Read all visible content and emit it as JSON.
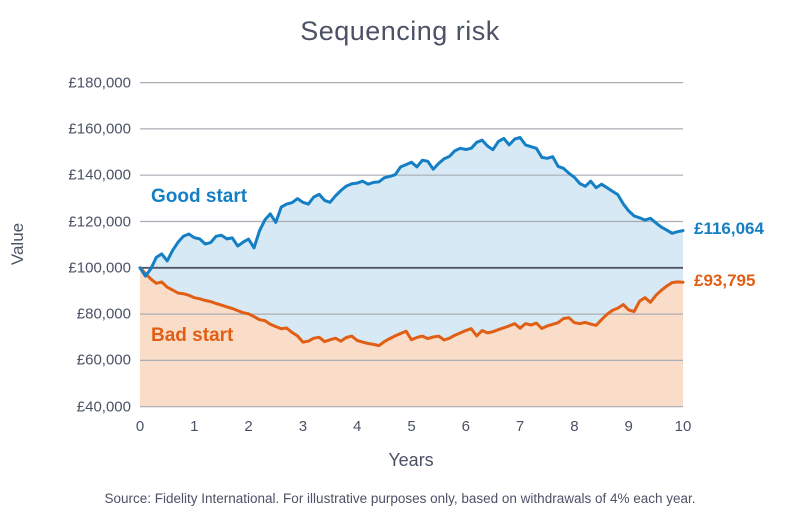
{
  "title": "Sequencing risk",
  "y_axis": {
    "label": "Value"
  },
  "x_axis": {
    "label": "Years"
  },
  "annotations": {
    "good_series_label": "Good start",
    "bad_series_label": "Bad start",
    "good_end_value": "£116,064",
    "bad_end_value": "£93,795"
  },
  "source": "Source: Fidelity International. For illustrative purposes only, based on withdrawals of 4% each year.",
  "colors": {
    "good_line": "#157fc5",
    "good_fill": "#d6e9f5",
    "bad_line": "#e05f15",
    "bad_fill": "#f9ddc9",
    "text": "#4b5266",
    "gridline": "#a9adb4",
    "gridline_emphasis": "#4e5564"
  },
  "chart_data": {
    "type": "area",
    "title": "Sequencing risk",
    "xlabel": "Years",
    "ylabel": "Value",
    "xlim": [
      0,
      10
    ],
    "ylim": [
      40000,
      180000
    ],
    "x_ticks": [
      0,
      1,
      2,
      3,
      4,
      5,
      6,
      7,
      8,
      9,
      10
    ],
    "y_ticks": [
      40000,
      60000,
      80000,
      100000,
      120000,
      140000,
      160000,
      180000
    ],
    "y_tick_labels": [
      "£40,000",
      "£60,000",
      "£80,000",
      "£100,000",
      "£120,000",
      "£140,000",
      "£160,000",
      "£180,000"
    ],
    "grid": true,
    "emphasized_gridline_value": 100000,
    "legend_position": "inline-labels",
    "x": [
      0,
      0.1,
      0.2,
      0.3,
      0.4,
      0.5,
      0.6,
      0.7,
      0.8,
      0.9,
      1,
      1.1,
      1.2,
      1.3,
      1.4,
      1.5,
      1.6,
      1.7,
      1.8,
      1.9,
      2,
      2.1,
      2.2,
      2.3,
      2.4,
      2.5,
      2.6,
      2.7,
      2.8,
      2.9,
      3,
      3.1,
      3.2,
      3.3,
      3.4,
      3.5,
      3.6,
      3.7,
      3.8,
      3.9,
      4,
      4.1,
      4.2,
      4.3,
      4.4,
      4.5,
      4.6,
      4.7,
      4.8,
      4.9,
      5,
      5.1,
      5.2,
      5.3,
      5.4,
      5.5,
      5.6,
      5.7,
      5.8,
      5.9,
      6,
      6.1,
      6.2,
      6.3,
      6.4,
      6.5,
      6.6,
      6.7,
      6.8,
      6.9,
      7,
      7.1,
      7.2,
      7.3,
      7.4,
      7.5,
      7.6,
      7.7,
      7.8,
      7.9,
      8,
      8.1,
      8.2,
      8.3,
      8.4,
      8.5,
      8.6,
      8.7,
      8.8,
      8.9,
      9,
      9.1,
      9.2,
      9.3,
      9.4,
      9.5,
      9.6,
      9.7,
      9.8,
      9.9,
      10
    ],
    "series": [
      {
        "name": "Good start",
        "end_value": 116064,
        "end_label": "£116,064",
        "values": [
          100000,
          96400,
          99600,
          104500,
          106000,
          103000,
          107500,
          111000,
          113600,
          114600,
          113000,
          112500,
          110300,
          110900,
          113600,
          114100,
          112500,
          112900,
          109400,
          111100,
          112400,
          108600,
          116000,
          120700,
          123300,
          119600,
          126200,
          127500,
          128100,
          129900,
          128300,
          127500,
          130600,
          131700,
          129100,
          128300,
          131100,
          133400,
          135300,
          136300,
          136600,
          137400,
          136100,
          136900,
          137100,
          138900,
          139500,
          140200,
          143600,
          144600,
          145600,
          143600,
          146500,
          146000,
          142600,
          145100,
          147100,
          148100,
          150600,
          151600,
          151100,
          151600,
          154200,
          155100,
          152600,
          151000,
          154600,
          155900,
          153100,
          155600,
          156300,
          153100,
          152300,
          151600,
          147700,
          147300,
          148000,
          143800,
          143000,
          140800,
          139100,
          136400,
          135200,
          137400,
          134600,
          136100,
          134600,
          133100,
          131600,
          127600,
          124600,
          122400,
          121600,
          120600,
          121400,
          119400,
          117600,
          116300,
          114900,
          115600,
          116064
        ]
      },
      {
        "name": "Bad start",
        "end_value": 93795,
        "end_label": "£93,795",
        "values": [
          100000,
          97600,
          95100,
          93300,
          93900,
          91600,
          90400,
          89100,
          88800,
          88100,
          87100,
          86600,
          85900,
          85400,
          84600,
          83900,
          83100,
          82400,
          81500,
          80600,
          80100,
          78900,
          77600,
          77200,
          75600,
          74600,
          73700,
          74000,
          72100,
          70600,
          67900,
          68300,
          69600,
          70000,
          68100,
          68900,
          69600,
          68300,
          69900,
          70500,
          68600,
          67900,
          67300,
          66900,
          66400,
          68100,
          69400,
          70600,
          71600,
          72600,
          68900,
          69900,
          70500,
          69400,
          70100,
          70500,
          68800,
          69600,
          70900,
          71900,
          72900,
          73700,
          70600,
          72900,
          71900,
          72400,
          73300,
          74100,
          74900,
          75900,
          73900,
          75900,
          75300,
          76100,
          73800,
          74900,
          75600,
          76300,
          78100,
          78400,
          76300,
          75900,
          76400,
          75700,
          75100,
          77600,
          79900,
          81600,
          82600,
          84100,
          81800,
          81100,
          85600,
          87100,
          85100,
          88100,
          90300,
          92100,
          93600,
          93900,
          93795
        ]
      }
    ]
  }
}
